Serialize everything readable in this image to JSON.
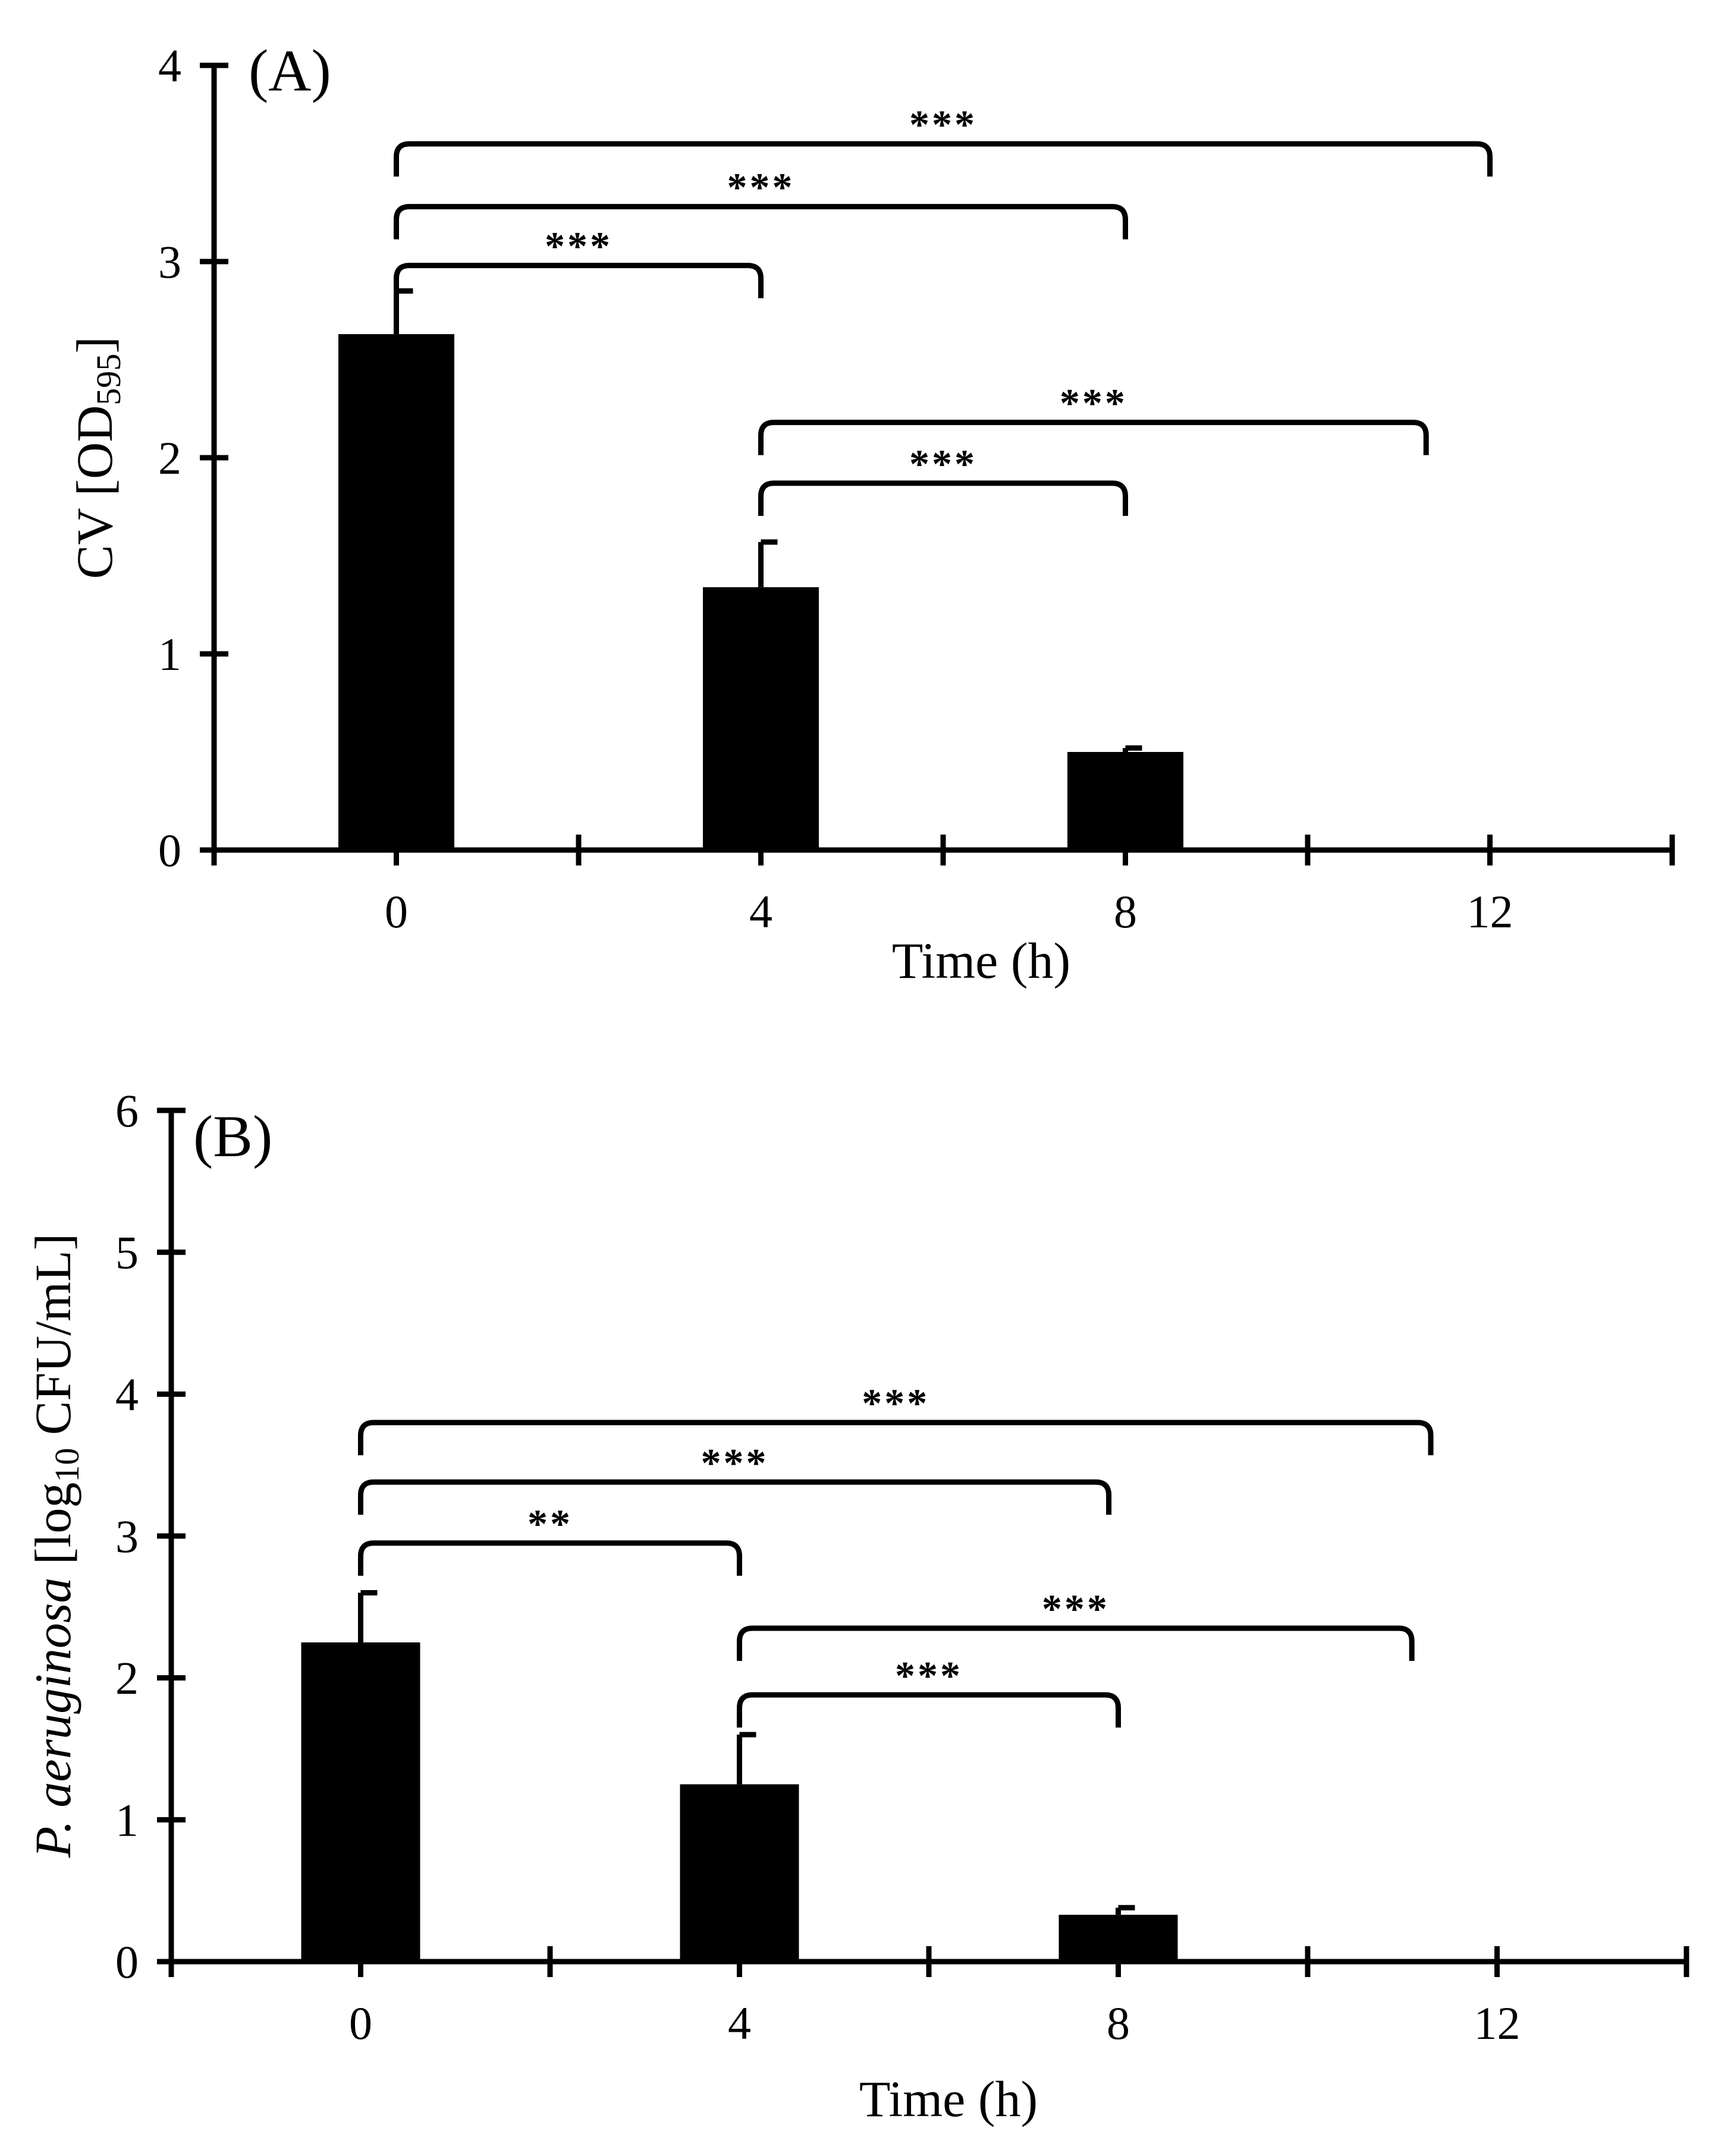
{
  "chart_data": [
    {
      "type": "bar",
      "panel_label": "(A)",
      "categories": [
        "0",
        "4",
        "8",
        "12"
      ],
      "x": [
        0,
        4,
        8,
        12
      ],
      "values": [
        2.63,
        1.34,
        0.5,
        0
      ],
      "errors": [
        0.22,
        0.23,
        0.02,
        0
      ],
      "xlabel": "Time (h)",
      "ylabel": {
        "prefix": "CV [OD",
        "subscript": "595",
        "suffix": "]"
      },
      "xlim": [
        -2,
        14
      ],
      "ylim": [
        0,
        4
      ],
      "yticks": [
        "0",
        "1",
        "2",
        "3",
        "4"
      ],
      "significance": [
        {
          "from": 0,
          "to": 12,
          "label": "***",
          "y": 3.6
        },
        {
          "from": 0,
          "to": 8,
          "label": "***",
          "y": 3.28
        },
        {
          "from": 0,
          "to": 4,
          "label": "***",
          "y": 2.98
        },
        {
          "from": 4,
          "to": 11.3,
          "label": "***",
          "y": 2.18
        },
        {
          "from": 4,
          "to": 8,
          "label": "***",
          "y": 1.87
        }
      ]
    },
    {
      "type": "bar",
      "panel_label": "(B)",
      "categories": [
        "0",
        "4",
        "8",
        "12"
      ],
      "x": [
        0,
        4,
        8,
        12
      ],
      "values": [
        2.25,
        1.25,
        0.33,
        0
      ],
      "errors": [
        0.35,
        0.35,
        0.05,
        0
      ],
      "xlabel": "Time (h)",
      "ylabel": {
        "italic": "P. aeruginosa",
        "prefix": " [log",
        "subscript": "10",
        "suffix": " CFU/mL]"
      },
      "xlim": [
        -2,
        14
      ],
      "ylim": [
        0,
        6
      ],
      "yticks": [
        "0",
        "1",
        "2",
        "3",
        "4",
        "5",
        "6"
      ],
      "significance": [
        {
          "from": 0,
          "to": 11.3,
          "label": "***",
          "y": 3.8
        },
        {
          "from": 0,
          "to": 7.9,
          "label": "***",
          "y": 3.38
        },
        {
          "from": 0,
          "to": 4,
          "label": "**",
          "y": 2.95
        },
        {
          "from": 4,
          "to": 11.1,
          "label": "***",
          "y": 2.35
        },
        {
          "from": 4,
          "to": 8,
          "label": "***",
          "y": 1.88
        }
      ]
    }
  ]
}
